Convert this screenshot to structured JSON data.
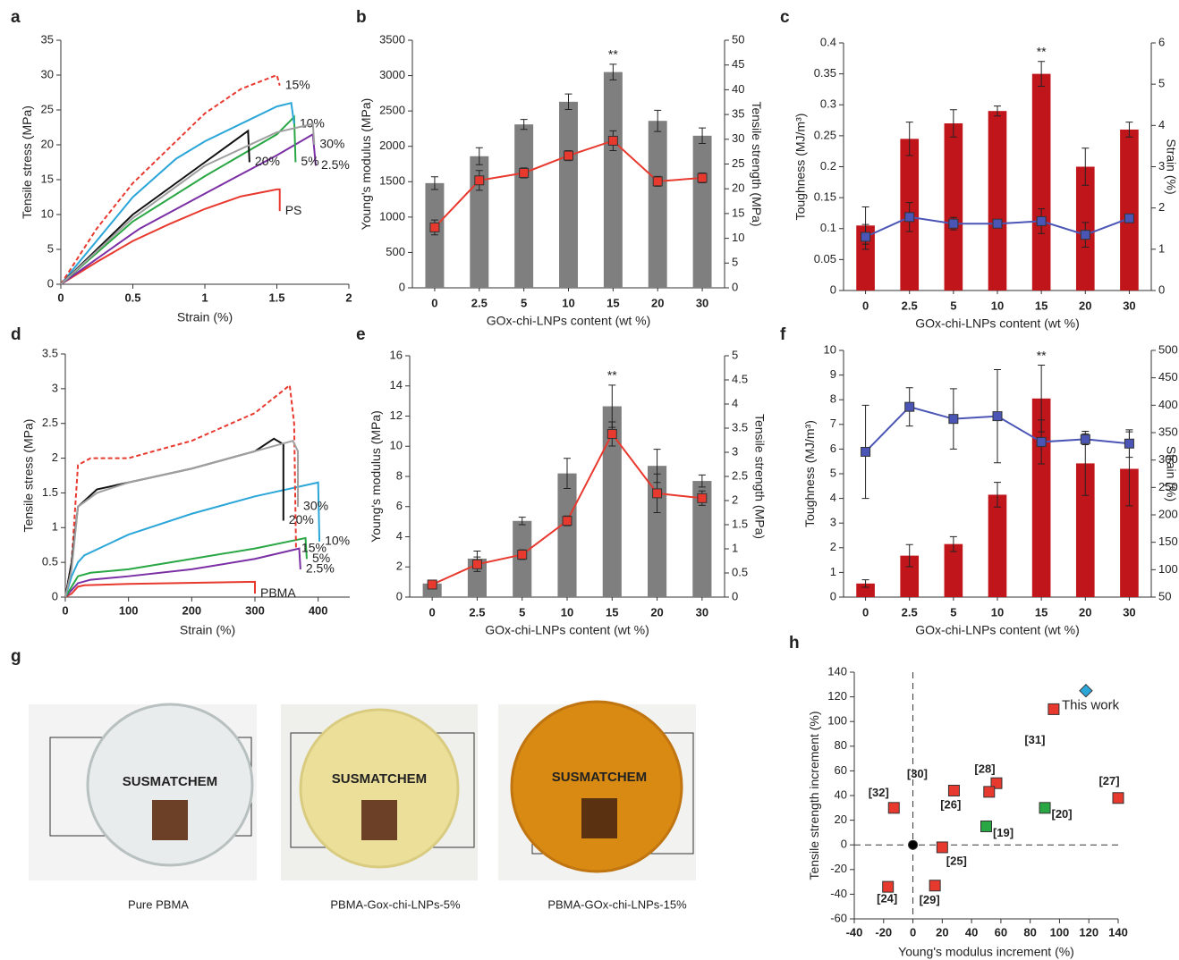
{
  "chart_data": [
    {
      "type": "line",
      "label": "a",
      "xlabel": "Strain (%)",
      "ylabel": "Tensile stress (MPa)",
      "xlim": [
        0,
        2
      ],
      "ylim": [
        0,
        35
      ],
      "xticks": [
        0,
        0.5,
        1,
        1.5,
        2
      ],
      "yticks": [
        0,
        5,
        10,
        15,
        20,
        25,
        30,
        35
      ],
      "series": [
        {
          "name": "PS",
          "color": "#e8392f",
          "x": [
            0,
            0.25,
            0.5,
            0.75,
            1.0,
            1.25,
            1.5,
            1.52,
            1.52
          ],
          "values": [
            0,
            3.2,
            6.2,
            8.6,
            10.8,
            12.6,
            13.6,
            13.6,
            10.5
          ]
        },
        {
          "name": "2.5%",
          "color": "#7b2fa5",
          "x": [
            0,
            0.5,
            0.55,
            1.0,
            1.5,
            1.75,
            1.77
          ],
          "values": [
            0,
            7.3,
            8.0,
            13,
            18.5,
            21.5,
            17
          ]
        },
        {
          "name": "5%",
          "color": "#2aa745",
          "x": [
            0,
            0.5,
            1.0,
            1.5,
            1.62,
            1.63
          ],
          "values": [
            0,
            9,
            15.5,
            21.5,
            24,
            17.5
          ]
        },
        {
          "name": "10%",
          "color": "#2ba6d8",
          "x": [
            0,
            0.5,
            0.8,
            1.0,
            1.3,
            1.5,
            1.6,
            1.62
          ],
          "values": [
            0,
            12.5,
            18,
            20.5,
            23.5,
            25.5,
            26,
            23
          ]
        },
        {
          "name": "15%",
          "color": "#e8392f",
          "dash": true,
          "x": [
            0,
            0.25,
            0.5,
            0.75,
            1.0,
            1.25,
            1.5,
            1.52
          ],
          "values": [
            0,
            8,
            14.5,
            19.5,
            24.5,
            28,
            30,
            28.5
          ]
        },
        {
          "name": "20%",
          "color": "#111111",
          "x": [
            0,
            0.5,
            1.0,
            1.3,
            1.31
          ],
          "values": [
            0,
            10,
            17.5,
            22,
            17.5
          ]
        },
        {
          "name": "30%",
          "color": "#a0a0a0",
          "x": [
            0,
            0.5,
            1.0,
            1.5,
            1.75,
            1.76
          ],
          "values": [
            0,
            9.5,
            17,
            21.8,
            23,
            20
          ]
        }
      ]
    },
    {
      "type": "bar",
      "label": "b",
      "xlabel": "GOx-chi-LNPs content (wt %)",
      "ylabel": "Young's modulus (MPa)",
      "y2label": "Tensile strength (MPa)",
      "ycolor": "#222222",
      "y2color": "#e8392f",
      "categories": [
        "0",
        "2.5",
        "5",
        "10",
        "15",
        "20",
        "30"
      ],
      "ylim": [
        0,
        3500
      ],
      "yticks": [
        0,
        500,
        1000,
        1500,
        2000,
        2500,
        3000,
        3500
      ],
      "y2lim": [
        0,
        50
      ],
      "y2ticks": [
        0,
        5,
        10,
        15,
        20,
        25,
        30,
        35,
        40,
        45,
        50
      ],
      "series": [
        {
          "color": "#7f7f7f",
          "values": [
            1480,
            1860,
            2310,
            2630,
            3050,
            2360,
            2150
          ],
          "errors": [
            90,
            120,
            70,
            110,
            110,
            150,
            110
          ]
        },
        {
          "color": "#e8392f",
          "mark": "line",
          "axis": "y2",
          "values": [
            12.2,
            21.7,
            23.2,
            26.7,
            29.7,
            21.5,
            22.2
          ],
          "errors": [
            1.5,
            2,
            1,
            1,
            2,
            1,
            1
          ]
        }
      ],
      "annotations": [
        {
          "text": "**",
          "category": "15"
        }
      ]
    },
    {
      "type": "bar",
      "label": "c",
      "xlabel": "GOx-chi-LNPs content (wt %)",
      "ylabel": "Toughness (MJ/m³)",
      "y2label": "Strain (%)",
      "ycolor": "#c0151b",
      "y2color": "#3f48a8",
      "categories": [
        "0",
        "2.5",
        "5",
        "10",
        "15",
        "20",
        "30"
      ],
      "ylim": [
        0,
        0.4
      ],
      "yticks": [
        0,
        0.05,
        0.1,
        0.15,
        0.2,
        0.25,
        0.3,
        0.35,
        0.4
      ],
      "y2lim": [
        0,
        6
      ],
      "y2ticks": [
        0,
        1,
        2,
        3,
        4,
        5,
        6
      ],
      "series": [
        {
          "color": "#c0151b",
          "values": [
            0.105,
            0.245,
            0.27,
            0.29,
            0.35,
            0.2,
            0.26
          ],
          "errors": [
            0.03,
            0.027,
            0.022,
            0.008,
            0.02,
            0.03,
            0.012
          ]
        },
        {
          "color": "#4a55b5",
          "mark": "line",
          "axis": "y2",
          "values": [
            1.3,
            1.78,
            1.62,
            1.62,
            1.68,
            1.35,
            1.75
          ],
          "errors": [
            0.3,
            0.35,
            0.15,
            0.1,
            0.3,
            0.3,
            0.1
          ]
        }
      ],
      "annotations": [
        {
          "text": "**",
          "category": "15"
        }
      ]
    },
    {
      "type": "line",
      "label": "d",
      "xlabel": "Strain (%)",
      "ylabel": "Tensile stress (MPa)",
      "xlim": [
        0,
        450
      ],
      "ylim": [
        0,
        3.5
      ],
      "xticks": [
        0,
        100,
        200,
        300,
        400
      ],
      "yticks": [
        0,
        0.5,
        1,
        1.5,
        2,
        2.5,
        3,
        3.5
      ],
      "series": [
        {
          "name": "PBMA",
          "color": "#e8392f",
          "x": [
            0,
            10,
            20,
            30,
            100,
            300,
            300
          ],
          "values": [
            0,
            0.05,
            0.15,
            0.17,
            0.19,
            0.22,
            0.05
          ]
        },
        {
          "name": "2.5%",
          "color": "#7b2fa5",
          "x": [
            0,
            10,
            20,
            40,
            100,
            200,
            300,
            370,
            372
          ],
          "values": [
            0,
            0.1,
            0.2,
            0.25,
            0.3,
            0.4,
            0.55,
            0.7,
            0.4
          ]
        },
        {
          "name": "5%",
          "color": "#2aa745",
          "x": [
            0,
            10,
            20,
            40,
            100,
            200,
            300,
            380,
            382
          ],
          "values": [
            0,
            0.15,
            0.3,
            0.35,
            0.4,
            0.55,
            0.7,
            0.85,
            0.55
          ]
        },
        {
          "name": "10%",
          "color": "#2ba6d8",
          "x": [
            0,
            10,
            20,
            30,
            100,
            200,
            300,
            400,
            402
          ],
          "values": [
            0,
            0.3,
            0.5,
            0.6,
            0.9,
            1.2,
            1.45,
            1.65,
            0.8
          ]
        },
        {
          "name": "15%",
          "color": "#e8392f",
          "dash": true,
          "x": [
            0,
            10,
            20,
            40,
            100,
            200,
            300,
            355,
            362,
            365
          ],
          "values": [
            0,
            0.5,
            1.9,
            2.0,
            2.0,
            2.25,
            2.65,
            3.05,
            2.5,
            0.7
          ]
        },
        {
          "name": "20%",
          "color": "#111111",
          "x": [
            0,
            10,
            20,
            50,
            100,
            200,
            300,
            330,
            345,
            345
          ],
          "values": [
            0,
            0.5,
            1.3,
            1.55,
            1.65,
            1.85,
            2.1,
            2.28,
            2.2,
            1.1
          ]
        },
        {
          "name": "30%",
          "color": "#a0a0a0",
          "x": [
            0,
            10,
            20,
            50,
            100,
            200,
            300,
            360,
            368,
            368
          ],
          "values": [
            0,
            0.4,
            1.3,
            1.5,
            1.65,
            1.85,
            2.1,
            2.25,
            2.1,
            1.3
          ]
        }
      ]
    },
    {
      "type": "bar",
      "label": "e",
      "xlabel": "GOx-chi-LNPs content (wt %)",
      "ylabel": "Young's modulus (MPa)",
      "y2label": "Tensile strength (MPa)",
      "ycolor": "#222222",
      "y2color": "#e8392f",
      "categories": [
        "0",
        "2.5",
        "5",
        "10",
        "15",
        "20",
        "30"
      ],
      "ylim": [
        0,
        16
      ],
      "yticks": [
        0,
        2,
        4,
        6,
        8,
        10,
        12,
        14,
        16
      ],
      "y2lim": [
        0,
        5
      ],
      "y2ticks": [
        0,
        0.5,
        1,
        1.5,
        2,
        2.5,
        3,
        3.5,
        4,
        4.5,
        5
      ],
      "series": [
        {
          "color": "#7f7f7f",
          "values": [
            0.9,
            2.55,
            5.05,
            8.2,
            12.65,
            8.7,
            7.7
          ],
          "errors": [
            0.1,
            0.5,
            0.25,
            1,
            1.4,
            1.1,
            0.4
          ]
        },
        {
          "color": "#e8392f",
          "mark": "line",
          "axis": "y2",
          "values": [
            0.26,
            0.68,
            0.88,
            1.58,
            3.38,
            2.15,
            2.05
          ],
          "errors": [
            0.03,
            0.15,
            0.1,
            0.1,
            0.25,
            0.4,
            0.15
          ]
        }
      ],
      "annotations": [
        {
          "text": "**",
          "category": "15"
        }
      ]
    },
    {
      "type": "bar",
      "label": "f",
      "xlabel": "GOx-chi-LNPs content (wt %)",
      "ylabel": "Toughness (MJ/m³)",
      "y2label": "Strain (%)",
      "ycolor": "#c0151b",
      "y2color": "#3f48a8",
      "categories": [
        "0",
        "2.5",
        "5",
        "10",
        "15",
        "20",
        "30"
      ],
      "ylim": [
        0,
        10
      ],
      "yticks": [
        0,
        1,
        2,
        3,
        4,
        5,
        6,
        7,
        8,
        9,
        10
      ],
      "y2lim": [
        50,
        500
      ],
      "y2ticks": [
        50,
        100,
        150,
        200,
        250,
        300,
        350,
        400,
        450,
        500
      ],
      "series": [
        {
          "color": "#c0151b",
          "values": [
            0.55,
            1.68,
            2.15,
            4.15,
            8.05,
            5.42,
            5.2
          ],
          "errors": [
            0.15,
            0.45,
            0.3,
            0.5,
            1.35,
            1.3,
            1.5
          ]
        },
        {
          "color": "#4a55b5",
          "mark": "line",
          "axis": "y2",
          "values": [
            315,
            397,
            375,
            380,
            333,
            338,
            330
          ],
          "errors": [
            85,
            35,
            55,
            85,
            40,
            10,
            25
          ]
        }
      ],
      "annotations": [
        {
          "text": "**",
          "category": "15"
        }
      ]
    },
    {
      "type": "scatter",
      "label": "h",
      "xlabel": "Young's modulus increment (%)",
      "ylabel": "Tensile strength increment (%)",
      "xlim": [
        -40,
        140
      ],
      "ylim": [
        -60,
        140
      ],
      "xticks": [
        -40,
        -20,
        0,
        20,
        40,
        60,
        80,
        100,
        120,
        140
      ],
      "yticks": [
        -60,
        -40,
        -20,
        0,
        20,
        40,
        60,
        80,
        100,
        120,
        140
      ],
      "reference_lines": {
        "x": 0,
        "y": 0
      },
      "points": [
        {
          "label": "[31]",
          "x": 96,
          "y": 110,
          "color": "#e8392f",
          "marker": "square"
        },
        {
          "label": "This work",
          "x": 118,
          "y": 125,
          "color": "#2ba6d8",
          "marker": "diamond",
          "label_color": "#1f2f8a"
        },
        {
          "label": "[30]",
          "x": 28,
          "y": 44,
          "color": "#e8392f",
          "marker": "square"
        },
        {
          "label": "[28]",
          "x": 57,
          "y": 50,
          "color": "#e8392f",
          "marker": "square"
        },
        {
          "label": "[26]",
          "x": 52,
          "y": 43,
          "color": "#e8392f",
          "marker": "square"
        },
        {
          "label": "[27]",
          "x": 140,
          "y": 38,
          "color": "#e8392f",
          "marker": "square"
        },
        {
          "label": "[32]",
          "x": -13,
          "y": 30,
          "color": "#e8392f",
          "marker": "square"
        },
        {
          "label": "[20]",
          "x": 90,
          "y": 30,
          "color": "#2aa745",
          "marker": "square"
        },
        {
          "label": "[19]",
          "x": 50,
          "y": 15,
          "color": "#2aa745",
          "marker": "square"
        },
        {
          "label": "[25]",
          "x": 20,
          "y": -2,
          "color": "#e8392f",
          "marker": "square"
        },
        {
          "label": "[24]",
          "x": -17,
          "y": -34,
          "color": "#e8392f",
          "marker": "square"
        },
        {
          "label": "[29]",
          "x": 15,
          "y": -33,
          "color": "#e8392f",
          "marker": "square"
        },
        {
          "x": 0,
          "y": 0,
          "color": "#000000",
          "marker": "circle"
        }
      ]
    }
  ],
  "panel_g": {
    "label": "g",
    "logo": "SUSMATCHEM",
    "captions": [
      "Pure PBMA",
      "PBMA-Gox-chi-LNPs-5%",
      "PBMA-GOx-chi-LNPs-15%"
    ]
  }
}
